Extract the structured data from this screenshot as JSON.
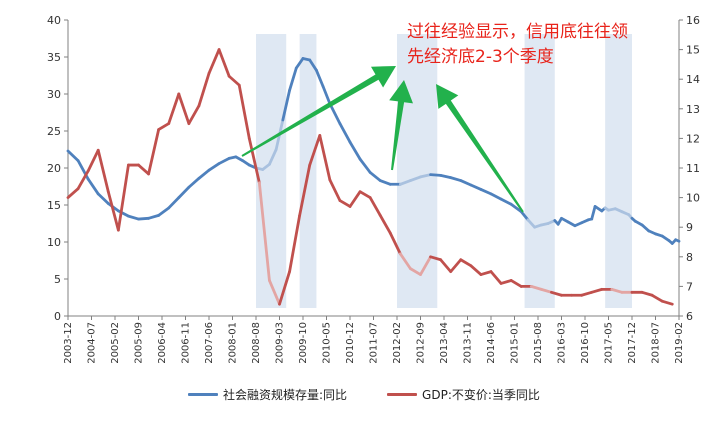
{
  "annotation": {
    "line1": "过往经验显示，信用底往往领",
    "line2": "先经济底2-3个季度"
  },
  "legend": {
    "tsf_label": "社会融资规模存量:同比",
    "gdp_label": "GDP:不变价:当季同比"
  },
  "colors": {
    "tsf": "#4f81bd",
    "tsf_faded": "#a9c1df",
    "gdp": "#c0504d",
    "gdp_faded": "#e3a5a3",
    "shade": "#dfe8f3",
    "arrow": "#22b14c"
  },
  "chart_data": {
    "type": "line",
    "title": "",
    "xlabel": "",
    "ylabel_left": "",
    "ylabel_right": "",
    "xlim": [
      "2003-12",
      "2019-02"
    ],
    "ylim_left": [
      0,
      40
    ],
    "ylim_right": [
      6,
      16
    ],
    "yticks_left": [
      "0",
      "5",
      "10",
      "15",
      "20",
      "25",
      "30",
      "35",
      "40"
    ],
    "yticks_right": [
      "6",
      "7",
      "8",
      "9",
      "10",
      "11",
      "12",
      "13",
      "14",
      "15",
      "16"
    ],
    "xticks": [
      "2003-12",
      "2004-07",
      "2005-02",
      "2005-09",
      "2006-04",
      "2006-11",
      "2007-06",
      "2008-01",
      "2008-08",
      "2009-03",
      "2009-10",
      "2010-05",
      "2010-12",
      "2011-07",
      "2012-02",
      "2012-09",
      "2013-04",
      "2013-11",
      "2014-06",
      "2015-01",
      "2015-08",
      "2016-03",
      "2016-10",
      "2017-05",
      "2017-12",
      "2018-07",
      "2019-02"
    ],
    "shaded_periods": [
      [
        "2008-08",
        "2009-05"
      ],
      [
        "2009-09",
        "2010-02"
      ],
      [
        "2012-02",
        "2013-02"
      ],
      [
        "2015-04",
        "2016-01"
      ],
      [
        "2017-04",
        "2017-12"
      ]
    ],
    "faded_periods": [
      [
        "2008-08",
        "2009-05"
      ],
      [
        "2012-02",
        "2013-02"
      ],
      [
        "2015-04",
        "2016-01"
      ],
      [
        "2017-04",
        "2017-12"
      ]
    ],
    "series": [
      {
        "name": "社会融资规模存量:同比",
        "axis": "left",
        "points": [
          [
            "2003-12",
            22.3
          ],
          [
            "2004-03",
            21
          ],
          [
            "2004-06",
            18.5
          ],
          [
            "2004-09",
            16.5
          ],
          [
            "2004-12",
            15.2
          ],
          [
            "2005-03",
            14.2
          ],
          [
            "2005-06",
            13.5
          ],
          [
            "2005-09",
            13.1
          ],
          [
            "2005-12",
            13.2
          ],
          [
            "2006-03",
            13.6
          ],
          [
            "2006-06",
            14.6
          ],
          [
            "2006-09",
            16
          ],
          [
            "2006-12",
            17.4
          ],
          [
            "2007-03",
            18.6
          ],
          [
            "2007-06",
            19.7
          ],
          [
            "2007-09",
            20.6
          ],
          [
            "2007-12",
            21.3
          ],
          [
            "2008-02",
            21.5
          ],
          [
            "2008-04",
            21
          ],
          [
            "2008-06",
            20.4
          ],
          [
            "2008-08",
            20
          ],
          [
            "2008-10",
            19.8
          ],
          [
            "2008-12",
            20.5
          ],
          [
            "2009-02",
            22.5
          ],
          [
            "2009-04",
            26.5
          ],
          [
            "2009-06",
            30.5
          ],
          [
            "2009-08",
            33.5
          ],
          [
            "2009-10",
            34.8
          ],
          [
            "2009-12",
            34.6
          ],
          [
            "2010-02",
            33.2
          ],
          [
            "2010-04",
            31
          ],
          [
            "2010-06",
            28.7
          ],
          [
            "2010-09",
            26
          ],
          [
            "2010-12",
            23.5
          ],
          [
            "2011-03",
            21.2
          ],
          [
            "2011-06",
            19.4
          ],
          [
            "2011-09",
            18.3
          ],
          [
            "2011-12",
            17.8
          ],
          [
            "2012-03",
            17.8
          ],
          [
            "2012-06",
            18.3
          ],
          [
            "2012-09",
            18.8
          ],
          [
            "2012-12",
            19.1
          ],
          [
            "2013-03",
            19
          ],
          [
            "2013-06",
            18.7
          ],
          [
            "2013-09",
            18.3
          ],
          [
            "2013-12",
            17.7
          ],
          [
            "2014-03",
            17.1
          ],
          [
            "2014-06",
            16.5
          ],
          [
            "2014-09",
            15.8
          ],
          [
            "2014-12",
            15.1
          ],
          [
            "2015-03",
            14.1
          ],
          [
            "2015-05",
            13
          ],
          [
            "2015-07",
            12
          ],
          [
            "2015-09",
            12.3
          ],
          [
            "2015-11",
            12.5
          ],
          [
            "2016-01",
            12.9
          ],
          [
            "2016-02",
            12.4
          ],
          [
            "2016-03",
            13.2
          ],
          [
            "2016-05",
            12.7
          ],
          [
            "2016-07",
            12.2
          ],
          [
            "2016-09",
            12.6
          ],
          [
            "2016-11",
            13
          ],
          [
            "2016-12",
            13.1
          ],
          [
            "2017-01",
            14.8
          ],
          [
            "2017-03",
            14.2
          ],
          [
            "2017-04",
            14.6
          ],
          [
            "2017-05",
            14.3
          ],
          [
            "2017-07",
            14.5
          ],
          [
            "2017-09",
            14.1
          ],
          [
            "2017-11",
            13.7
          ],
          [
            "2017-12",
            13.2
          ],
          [
            "2018-01",
            12.8
          ],
          [
            "2018-03",
            12.3
          ],
          [
            "2018-05",
            11.5
          ],
          [
            "2018-07",
            11.1
          ],
          [
            "2018-09",
            10.8
          ],
          [
            "2018-11",
            10.2
          ],
          [
            "2018-12",
            9.8
          ],
          [
            "2019-01",
            10.3
          ],
          [
            "2019-02",
            10.1
          ]
        ]
      },
      {
        "name": "GDP:不变价:当季同比",
        "axis": "right",
        "points": [
          [
            "2003-12",
            10
          ],
          [
            "2004-03",
            10.3
          ],
          [
            "2004-06",
            10.9
          ],
          [
            "2004-09",
            11.6
          ],
          [
            "2004-12",
            10.2
          ],
          [
            "2005-03",
            8.9
          ],
          [
            "2005-06",
            11.1
          ],
          [
            "2005-09",
            11.1
          ],
          [
            "2005-12",
            10.8
          ],
          [
            "2006-03",
            12.3
          ],
          [
            "2006-06",
            12.5
          ],
          [
            "2006-09",
            13.5
          ],
          [
            "2006-12",
            12.5
          ],
          [
            "2007-03",
            13.1
          ],
          [
            "2007-06",
            14.2
          ],
          [
            "2007-09",
            15
          ],
          [
            "2007-12",
            14.1
          ],
          [
            "2008-03",
            13.8
          ],
          [
            "2008-06",
            12
          ],
          [
            "2008-09",
            10.5
          ],
          [
            "2008-12",
            7.2
          ],
          [
            "2009-03",
            6.4
          ],
          [
            "2009-06",
            7.5
          ],
          [
            "2009-09",
            9.4
          ],
          [
            "2009-12",
            11.1
          ],
          [
            "2010-03",
            12.1
          ],
          [
            "2010-06",
            10.6
          ],
          [
            "2010-09",
            9.9
          ],
          [
            "2010-12",
            9.7
          ],
          [
            "2011-03",
            10.2
          ],
          [
            "2011-06",
            10
          ],
          [
            "2011-09",
            9.4
          ],
          [
            "2011-12",
            8.8
          ],
          [
            "2012-03",
            8.1
          ],
          [
            "2012-06",
            7.6
          ],
          [
            "2012-09",
            7.4
          ],
          [
            "2012-12",
            8
          ],
          [
            "2013-03",
            7.9
          ],
          [
            "2013-06",
            7.5
          ],
          [
            "2013-09",
            7.9
          ],
          [
            "2013-12",
            7.7
          ],
          [
            "2014-03",
            7.4
          ],
          [
            "2014-06",
            7.5
          ],
          [
            "2014-09",
            7.1
          ],
          [
            "2014-12",
            7.2
          ],
          [
            "2015-03",
            7
          ],
          [
            "2015-06",
            7
          ],
          [
            "2015-09",
            6.9
          ],
          [
            "2015-12",
            6.8
          ],
          [
            "2016-03",
            6.7
          ],
          [
            "2016-06",
            6.7
          ],
          [
            "2016-09",
            6.7
          ],
          [
            "2016-12",
            6.8
          ],
          [
            "2017-03",
            6.9
          ],
          [
            "2017-06",
            6.9
          ],
          [
            "2017-09",
            6.8
          ],
          [
            "2017-12",
            6.8
          ],
          [
            "2018-03",
            6.8
          ],
          [
            "2018-06",
            6.7
          ],
          [
            "2018-09",
            6.5
          ],
          [
            "2018-12",
            6.4
          ]
        ]
      }
    ]
  }
}
